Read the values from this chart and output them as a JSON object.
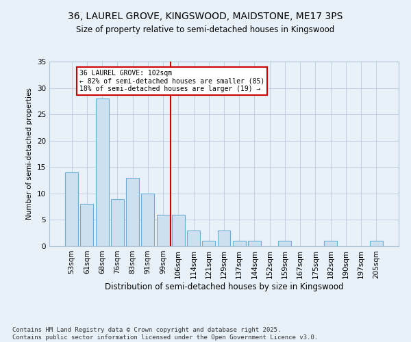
{
  "title1": "36, LAUREL GROVE, KINGSWOOD, MAIDSTONE, ME17 3PS",
  "title2": "Size of property relative to semi-detached houses in Kingswood",
  "xlabel": "Distribution of semi-detached houses by size in Kingswood",
  "ylabel": "Number of semi-detached properties",
  "categories": [
    "53sqm",
    "61sqm",
    "68sqm",
    "76sqm",
    "83sqm",
    "91sqm",
    "99sqm",
    "106sqm",
    "114sqm",
    "121sqm",
    "129sqm",
    "137sqm",
    "144sqm",
    "152sqm",
    "159sqm",
    "167sqm",
    "175sqm",
    "182sqm",
    "190sqm",
    "197sqm",
    "205sqm"
  ],
  "values": [
    14,
    8,
    28,
    9,
    13,
    10,
    6,
    6,
    3,
    1,
    3,
    1,
    1,
    0,
    1,
    0,
    0,
    1,
    0,
    0,
    1
  ],
  "bar_color": "#cce0f0",
  "bar_edge_color": "#6aaed6",
  "vline_x": 6.5,
  "vline_color": "#cc0000",
  "annotation_text": "36 LAUREL GROVE: 102sqm\n← 82% of semi-detached houses are smaller (85)\n18% of semi-detached houses are larger (19) →",
  "annotation_box_color": "#ffffff",
  "annotation_box_edge": "#cc0000",
  "ylim": [
    0,
    35
  ],
  "yticks": [
    0,
    5,
    10,
    15,
    20,
    25,
    30,
    35
  ],
  "bg_color": "#e8f0f8",
  "footer1": "Contains HM Land Registry data © Crown copyright and database right 2025.",
  "footer2": "Contains public sector information licensed under the Open Government Licence v3.0."
}
